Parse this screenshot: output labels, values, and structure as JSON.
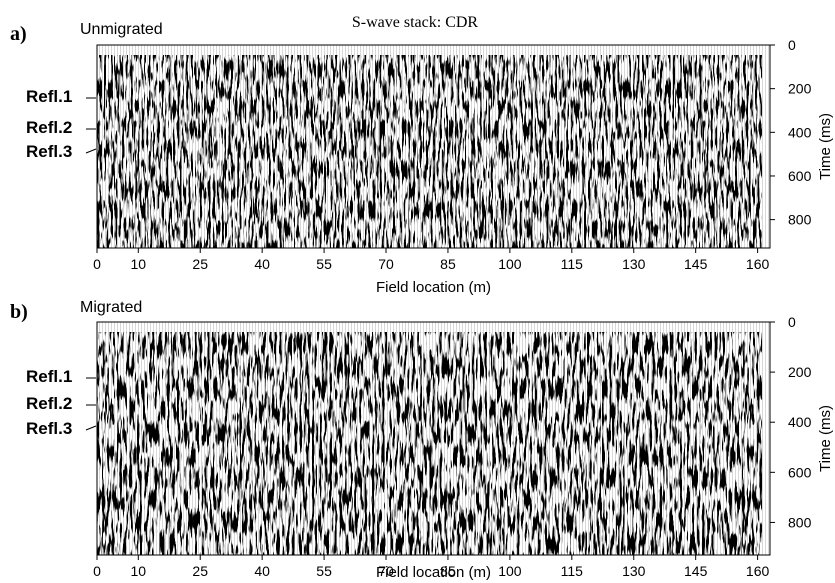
{
  "title": "S-wave stack: CDR",
  "panels": [
    {
      "label": "a)",
      "subtitle": "Unmigrated",
      "xlabel": "Field location (m)",
      "ylabel": "Time (ms)",
      "xlim": [
        0,
        163
      ],
      "xticks": [
        0,
        10,
        25,
        40,
        55,
        70,
        85,
        100,
        115,
        130,
        145,
        160
      ],
      "ylim": [
        0,
        930
      ],
      "yticks": [
        0,
        200,
        400,
        600,
        800
      ],
      "reflectors": [
        "Refl.1",
        "Refl.2",
        "Refl.3"
      ]
    },
    {
      "label": "b)",
      "subtitle": "Migrated",
      "xlabel": "Field location (m)",
      "ylabel": "Time (ms)",
      "xlim": [
        0,
        163
      ],
      "xticks": [
        0,
        10,
        25,
        40,
        55,
        70,
        85,
        100,
        115,
        130,
        145,
        160
      ],
      "ylim": [
        0,
        930
      ],
      "yticks": [
        0,
        200,
        400,
        600,
        800
      ],
      "reflectors": [
        "Refl.1",
        "Refl.2",
        "Refl.3"
      ]
    }
  ]
}
